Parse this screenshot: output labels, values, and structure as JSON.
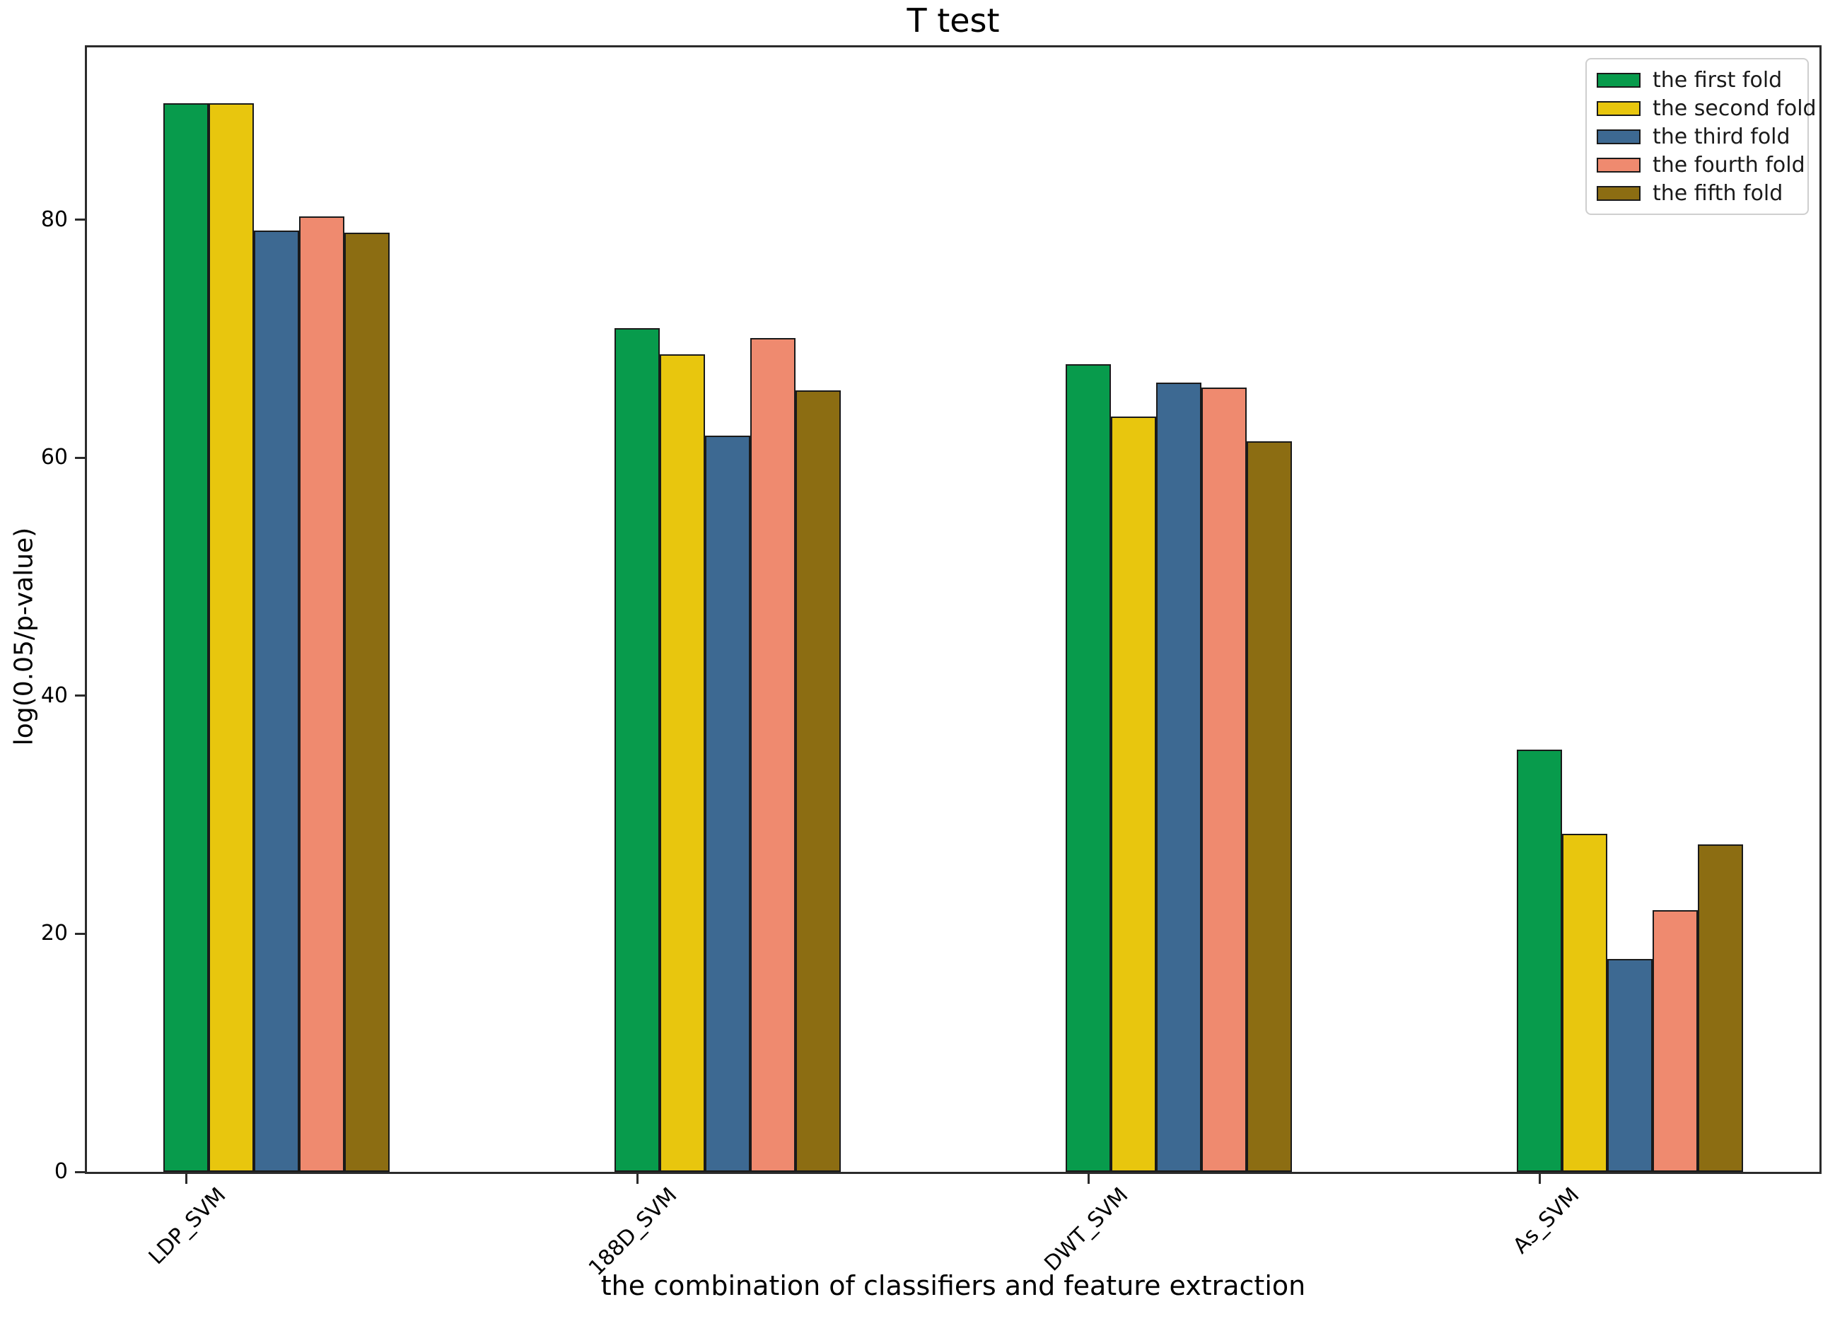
{
  "chart_data": {
    "type": "bar",
    "title": "T test",
    "xlabel": "the combination of classifiers and feature extraction",
    "ylabel": "log(0.05/p-value)",
    "categories": [
      "LDP_SVM",
      "188D_SVM",
      "DWT_SVM",
      "As_SVM"
    ],
    "series": [
      {
        "name": "the first fold",
        "color": "#089b4c",
        "values": [
          89.8,
          70.9,
          67.9,
          35.5
        ]
      },
      {
        "name": "the second fold",
        "color": "#e8c60e",
        "values": [
          89.8,
          68.7,
          63.5,
          28.4
        ]
      },
      {
        "name": "the third fold",
        "color": "#3d6992",
        "values": [
          79.1,
          61.9,
          66.3,
          17.9
        ]
      },
      {
        "name": "the fourth fold",
        "color": "#ef8a6f",
        "values": [
          80.3,
          70.1,
          65.9,
          22.0
        ]
      },
      {
        "name": "the fifth fold",
        "color": "#8c6d12",
        "values": [
          78.9,
          65.7,
          61.4,
          27.5
        ]
      }
    ],
    "yticks": [
      0,
      20,
      40,
      60,
      80
    ],
    "ylim": [
      0,
      94.5
    ],
    "grid": false,
    "legend_position": "upper right",
    "bar_edge_color": "#1a1a1a"
  }
}
